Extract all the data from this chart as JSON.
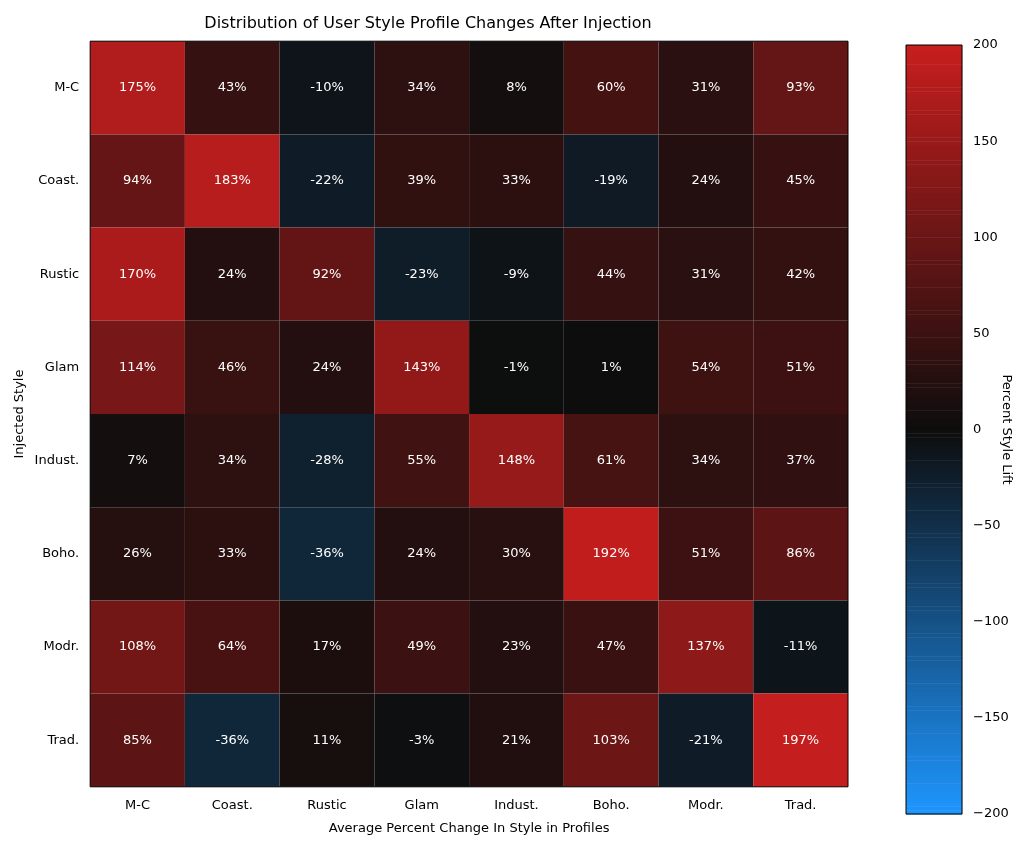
{
  "chart_data": {
    "type": "heatmap",
    "title": "Distribution of User Style Profile Changes After Injection",
    "xlabel": "Average Percent Change In Style in Profiles",
    "ylabel": "Injected Style",
    "clabel": "Percent Style Lift",
    "categories": [
      "M-C",
      "Coast.",
      "Rustic",
      "Glam",
      "Indust.",
      "Boho.",
      "Modr.",
      "Trad."
    ],
    "y_categories": [
      "M-C",
      "Coast.",
      "Rustic",
      "Glam",
      "Indust.",
      "Boho.",
      "Modr.",
      "Trad."
    ],
    "cells": [
      [
        175,
        43,
        -10,
        34,
        8,
        60,
        31,
        93
      ],
      [
        94,
        183,
        -22,
        39,
        33,
        -19,
        24,
        45
      ],
      [
        170,
        24,
        92,
        -23,
        -9,
        44,
        31,
        42
      ],
      [
        114,
        46,
        24,
        143,
        -1,
        1,
        54,
        51
      ],
      [
        7,
        34,
        -28,
        55,
        148,
        61,
        34,
        37
      ],
      [
        26,
        33,
        -36,
        24,
        30,
        192,
        51,
        86
      ],
      [
        108,
        64,
        17,
        49,
        23,
        47,
        137,
        -11
      ],
      [
        85,
        -36,
        11,
        -3,
        21,
        103,
        -21,
        197
      ]
    ],
    "cell_labels": [
      [
        "175%",
        "43%",
        "-10%",
        "34%",
        "8%",
        "60%",
        "31%",
        "93%"
      ],
      [
        "94%",
        "183%",
        "-22%",
        "39%",
        "33%",
        "-19%",
        "24%",
        "45%"
      ],
      [
        "170%",
        "24%",
        "92%",
        "-23%",
        "-9%",
        "44%",
        "31%",
        "42%"
      ],
      [
        "114%",
        "46%",
        "24%",
        "143%",
        "-1%",
        "1%",
        "54%",
        "51%"
      ],
      [
        "7%",
        "34%",
        "-28%",
        "55%",
        "148%",
        "61%",
        "34%",
        "37%"
      ],
      [
        "26%",
        "33%",
        "-36%",
        "24%",
        "30%",
        "192%",
        "51%",
        "86%"
      ],
      [
        "108%",
        "64%",
        "17%",
        "49%",
        "23%",
        "47%",
        "137%",
        "-11%"
      ],
      [
        "85%",
        "-36%",
        "11%",
        "-3%",
        "21%",
        "103%",
        "-21%",
        "197%"
      ]
    ],
    "clim": [
      -200,
      200
    ],
    "cticks": [
      -200,
      -150,
      -100,
      -50,
      0,
      50,
      100,
      150,
      200
    ]
  }
}
